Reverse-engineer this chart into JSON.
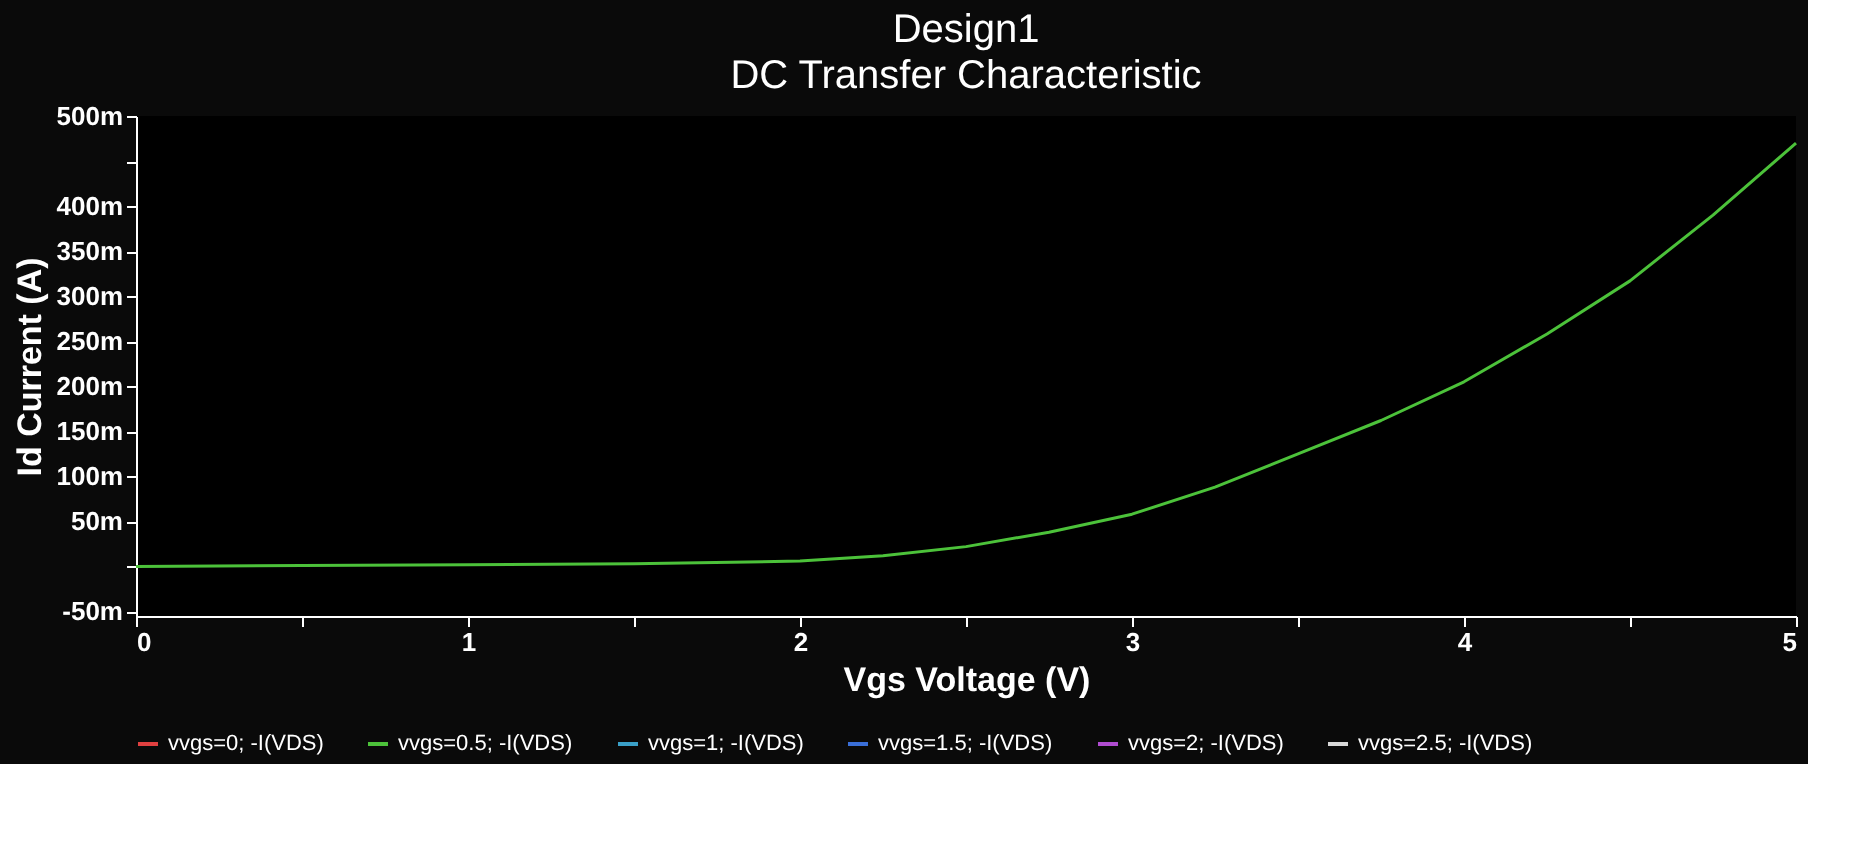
{
  "chart_data": {
    "type": "line",
    "title": "Design1",
    "subtitle": "DC Transfer Characteristic",
    "xlabel": "Vgs Voltage (V)",
    "ylabel": "Id Current (A)",
    "x": [
      0,
      0.5,
      1,
      1.5,
      2,
      2.25,
      2.5,
      2.75,
      3,
      3.25,
      3.5,
      3.75,
      4,
      4.25,
      4.5,
      4.75,
      5
    ],
    "series": [
      {
        "name": "vvgs=0; -I(VDS)",
        "color": "#e04040",
        "values": [
          null,
          null,
          null,
          null,
          null,
          null,
          null,
          null,
          null,
          null,
          null,
          null,
          null,
          null,
          null,
          null,
          null
        ]
      },
      {
        "name": "vvgs=0.5; -I(VDS)",
        "color": "#4cc23a",
        "values": [
          0,
          1,
          2,
          3,
          6,
          12,
          22,
          38,
          58,
          88,
          125,
          162,
          205,
          258,
          317,
          390,
          470
        ]
      },
      {
        "name": "vvgs=1; -I(VDS)",
        "color": "#3aa0c8",
        "values": [
          null,
          null,
          null,
          null,
          null,
          null,
          null,
          null,
          null,
          null,
          null,
          null,
          null,
          null,
          null,
          null,
          null
        ]
      },
      {
        "name": "vvgs=1.5; -I(VDS)",
        "color": "#3a6fd8",
        "values": [
          null,
          null,
          null,
          null,
          null,
          null,
          null,
          null,
          null,
          null,
          null,
          null,
          null,
          null,
          null,
          null,
          null
        ]
      },
      {
        "name": "vvgs=2; -I(VDS)",
        "color": "#b04cd0",
        "values": [
          null,
          null,
          null,
          null,
          null,
          null,
          null,
          null,
          null,
          null,
          null,
          null,
          null,
          null,
          null,
          null,
          null
        ]
      },
      {
        "name": "vvgs=2.5; -I(VDS)",
        "color": "#d8d8d8",
        "values": [
          null,
          null,
          null,
          null,
          null,
          null,
          null,
          null,
          null,
          null,
          null,
          null,
          null,
          null,
          null,
          null,
          null
        ]
      }
    ],
    "xlim": [
      0,
      5
    ],
    "xticks": [
      0,
      {
        "value": 0.5,
        "label": null
      },
      1,
      {
        "value": 1.5,
        "label": null
      },
      2,
      {
        "value": 2.5,
        "label": null
      },
      3,
      {
        "value": 3.5,
        "label": null
      },
      4,
      {
        "value": 4.5,
        "label": null
      },
      5
    ],
    "ylim": [
      -55,
      500
    ],
    "yticks": [
      {
        "value": -50,
        "label": "-50m"
      },
      {
        "value": 0,
        "label": null
      },
      {
        "value": 50,
        "label": "50m"
      },
      {
        "value": 100,
        "label": "100m"
      },
      {
        "value": 150,
        "label": "150m"
      },
      {
        "value": 200,
        "label": "200m"
      },
      {
        "value": 250,
        "label": "250m"
      },
      {
        "value": 300,
        "label": "300m"
      },
      {
        "value": 350,
        "label": "350m"
      },
      {
        "value": 400,
        "label": "400m"
      },
      {
        "value": 450,
        "label": null
      },
      {
        "value": 500,
        "label": "500m"
      }
    ],
    "grid": false,
    "legend": "bottom",
    "marker": "none",
    "line_style": "solid"
  }
}
